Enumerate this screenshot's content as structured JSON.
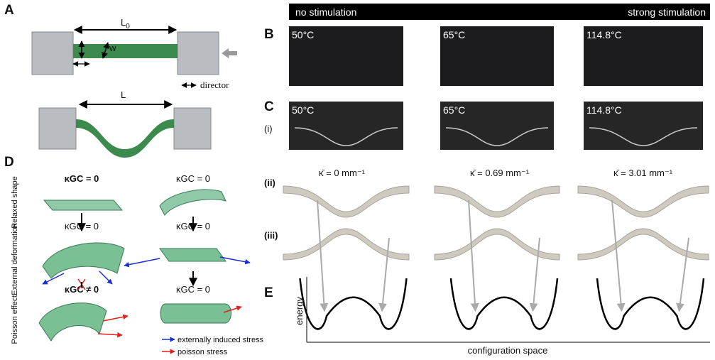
{
  "panels": [
    "A",
    "B",
    "C",
    "D",
    "E"
  ],
  "panel_a": {
    "length_flat": "L",
    "length_flat_sub": "0",
    "width": "w",
    "length_buckled": "L",
    "director": "director"
  },
  "stimulation": {
    "left": "no stimulation",
    "right": "strong stimulation"
  },
  "panel_b": {
    "temperatures": [
      "50°C",
      "65°C",
      "114.8°C"
    ]
  },
  "panel_c": {
    "row_labels": [
      "(i)",
      "(ii)",
      "(iii)"
    ],
    "temperatures": [
      "50°C",
      "65°C",
      "114.8°C"
    ],
    "curvatures": [
      "κ̄ = 0 mm⁻¹",
      "κ̄ = 0.69 mm⁻¹",
      "κ̄ = 3.01 mm⁻¹"
    ]
  },
  "panel_d": {
    "row_labels": [
      "Relaxed shape",
      "External deformation",
      "Poisson effect"
    ],
    "states_left": [
      "κGC = 0",
      "κGC = 0",
      "κGC ≠ 0"
    ],
    "states_right": [
      "κGC = 0",
      "κGC = 0",
      "κGC = 0"
    ],
    "legend": [
      "externally induced stress",
      "poisson stress"
    ]
  },
  "panel_e": {
    "y_label": "energy",
    "x_label": "configuration space"
  }
}
